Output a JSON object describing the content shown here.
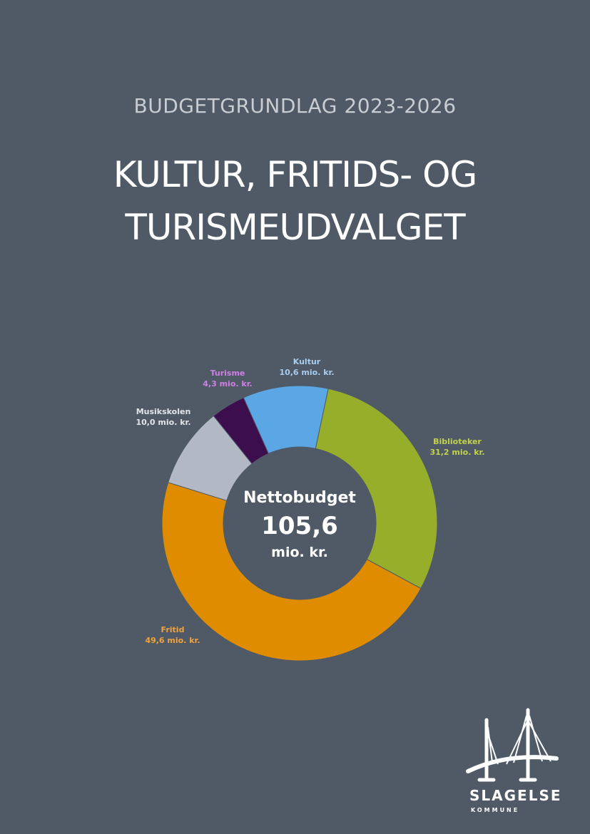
{
  "header": {
    "subtitle": "BUDGETGRUNDLAG 2023-2026",
    "title_line1": "KULTUR, FRITIDS- OG",
    "title_line2": "TURISMEUDVALGET"
  },
  "center": {
    "label": "Nettobudget",
    "value": "105,6",
    "unit": "mio. kr."
  },
  "chart_data": {
    "type": "pie",
    "donut": true,
    "categories": [
      "Kultur",
      "Biblioteker",
      "Fritid",
      "Musikskolen",
      "Turisme"
    ],
    "values": [
      10.6,
      31.2,
      49.6,
      10.0,
      4.3
    ],
    "value_labels": [
      "10,6 mio. kr.",
      "31,2 mio. kr.",
      "49,6 mio. kr.",
      "10,0 mio. kr.",
      "4,3 mio. kr."
    ],
    "colors": [
      "#5ba7e6",
      "#97ae2a",
      "#e08c00",
      "#b2b9c4",
      "#3d0e4e"
    ],
    "label_colors": [
      "#a7cdf0",
      "#c1d24e",
      "#f2a23a",
      "#e3e5e8",
      "#d07fe6"
    ],
    "total": 105.6,
    "title": ""
  },
  "logo": {
    "name": "SLAGELSE",
    "sub": "KOMMUNE"
  }
}
